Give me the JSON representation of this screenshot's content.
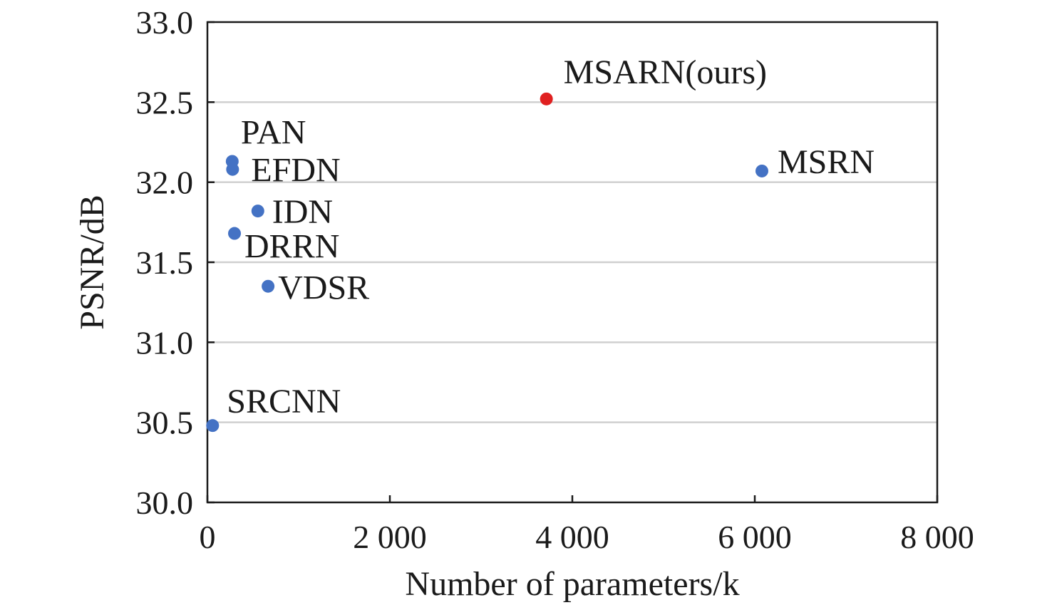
{
  "chart_data": {
    "type": "scatter",
    "title": "",
    "xlabel": "Number of parameters/k",
    "ylabel": "PSNR/dB",
    "xlim": [
      0,
      8000
    ],
    "ylim": [
      30.0,
      33.0
    ],
    "x_ticks": [
      0,
      2000,
      4000,
      6000,
      8000
    ],
    "x_tick_labels": [
      "0",
      "2 000",
      "4 000",
      "6 000",
      "8 000"
    ],
    "y_ticks": [
      30.0,
      30.5,
      31.0,
      31.5,
      32.0,
      32.5,
      33.0
    ],
    "y_tick_labels": [
      "30.0",
      "30.5",
      "31.0",
      "31.5",
      "32.0",
      "32.5",
      "33.0"
    ],
    "grid": "horizontal",
    "points": [
      {
        "label": "SRCNN",
        "x": 57,
        "y": 30.48,
        "color": "#4472c4"
      },
      {
        "label": "VDSR",
        "x": 665,
        "y": 31.35,
        "color": "#4472c4"
      },
      {
        "label": "DRRN",
        "x": 297,
        "y": 31.68,
        "color": "#4472c4"
      },
      {
        "label": "IDN",
        "x": 553,
        "y": 31.82,
        "color": "#4472c4"
      },
      {
        "label": "EFDN",
        "x": 276,
        "y": 32.08,
        "color": "#4472c4"
      },
      {
        "label": "PAN",
        "x": 272,
        "y": 32.13,
        "color": "#4472c4"
      },
      {
        "label": "MSRN",
        "x": 6078,
        "y": 32.07,
        "color": "#4472c4"
      },
      {
        "label": "MSARN(ours)",
        "x": 3716,
        "y": 32.52,
        "color": "#e02020"
      }
    ]
  }
}
